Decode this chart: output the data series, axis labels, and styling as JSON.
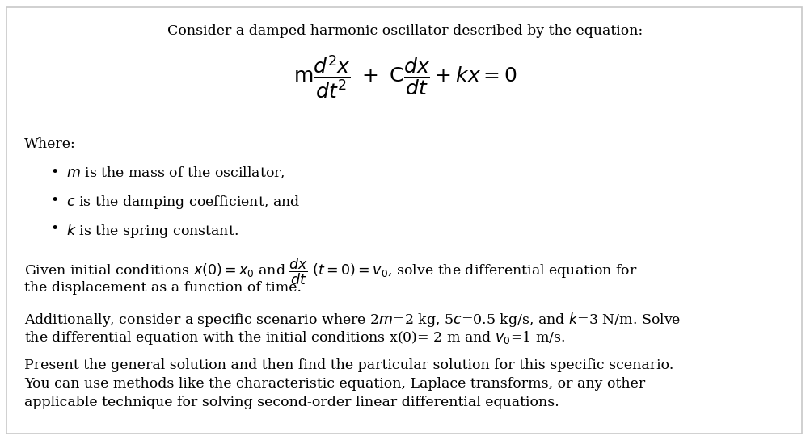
{
  "bg_color": "#ffffff",
  "border_color": "#c8c8c8",
  "title": "Consider a damped harmonic oscillator described by the equation:",
  "title_fontsize": 12.5,
  "body_fontsize": 12.5,
  "where_label": "Where:",
  "bullet_texts": [
    "$m$ is the mass of the oscillator,",
    "$c$ is the damping coefficient, and",
    "$k$ is the spring constant."
  ],
  "given_line1": "Given initial conditions $x(0) = x_0$ and $\\dfrac{dx}{dt}$ $(t = 0) = v_0$, solve the differential equation for",
  "given_line2": "the displacement as a function of time.",
  "add_line1": "Additionally, consider a specific scenario where 2$m$=2 kg, 5$c$=0.5 kg/s, and $k$=3 N/m. Solve",
  "add_line2": "the differential equation with the initial conditions x(0)= 2 m and $v_0$=1 m/s.",
  "pres_line1": "Present the general solution and then find the particular solution for this specific scenario.",
  "pres_line2": "You can use methods like the characteristic equation, Laplace transforms, or any other",
  "pres_line3": "applicable technique for solving second-order linear differential equations."
}
